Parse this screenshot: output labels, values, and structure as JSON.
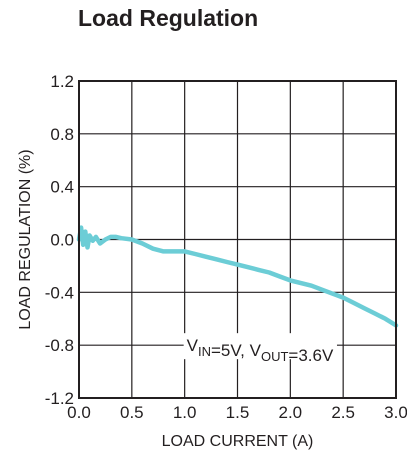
{
  "chart_data": {
    "type": "line",
    "title": "Load Regulation",
    "xlabel": "LOAD CURRENT (A)",
    "ylabel": "LOAD REGULATION (%)",
    "xlim": [
      0.0,
      3.0
    ],
    "ylim": [
      -1.2,
      1.2
    ],
    "xticks": [
      "0.0",
      "0.5",
      "1.0",
      "1.5",
      "2.0",
      "2.5",
      "3.0"
    ],
    "yticks": [
      "1.2",
      "0.8",
      "0.4",
      "0.0",
      "-0.4",
      "-0.8",
      "-1.2"
    ],
    "grid": true,
    "series": [
      {
        "color": "#6ccdd6",
        "x": [
          0.0,
          0.02,
          0.04,
          0.06,
          0.08,
          0.1,
          0.13,
          0.16,
          0.2,
          0.25,
          0.3,
          0.35,
          0.4,
          0.5,
          0.6,
          0.7,
          0.8,
          0.9,
          1.0,
          1.1,
          1.2,
          1.3,
          1.4,
          1.5,
          1.6,
          1.7,
          1.8,
          1.9,
          2.0,
          2.1,
          2.2,
          2.3,
          2.4,
          2.5,
          2.6,
          2.7,
          2.8,
          2.9,
          3.0
        ],
        "values": [
          0.0,
          0.09,
          -0.04,
          0.06,
          -0.06,
          0.03,
          -0.01,
          0.02,
          -0.03,
          0.0,
          0.02,
          0.02,
          0.01,
          0.0,
          -0.03,
          -0.07,
          -0.09,
          -0.09,
          -0.09,
          -0.11,
          -0.13,
          -0.15,
          -0.17,
          -0.19,
          -0.21,
          -0.23,
          -0.25,
          -0.28,
          -0.31,
          -0.33,
          -0.35,
          -0.38,
          -0.41,
          -0.44,
          -0.48,
          -0.52,
          -0.56,
          -0.6,
          -0.65
        ]
      }
    ],
    "annotation": {
      "parts": [
        {
          "t": "V",
          "sub": false
        },
        {
          "t": "IN",
          "sub": true
        },
        {
          "t": "=5V, V",
          "sub": false
        },
        {
          "t": "OUT",
          "sub": true
        },
        {
          "t": "=3.6V",
          "sub": false
        }
      ],
      "x": 1.0,
      "y": -0.8
    }
  }
}
